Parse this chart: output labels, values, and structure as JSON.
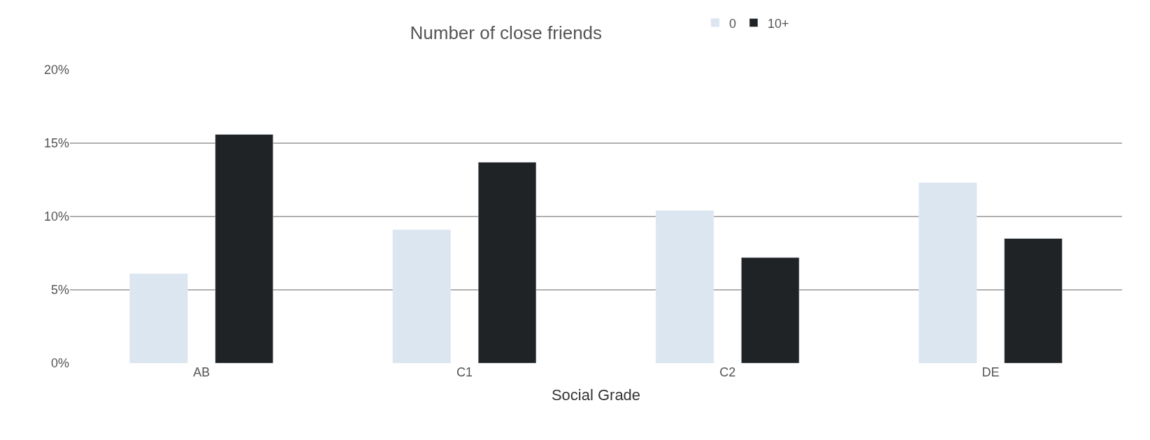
{
  "chart_data": {
    "type": "bar",
    "title": "Number of close friends",
    "xlabel": "Social Grade",
    "categories": [
      "AB",
      "C1",
      "C2",
      "DE"
    ],
    "series": [
      {
        "name": "0",
        "color": "#dce6f0",
        "values": [
          6.1,
          9.1,
          10.4,
          12.3
        ]
      },
      {
        "name": "10+",
        "color": "#1f2326",
        "values": [
          15.6,
          13.7,
          7.2,
          8.5
        ]
      }
    ],
    "ylim": [
      0,
      20
    ],
    "yticks": [
      {
        "value": 0,
        "label": "0%"
      },
      {
        "value": 5,
        "label": "5%"
      },
      {
        "value": 10,
        "label": "10%"
      },
      {
        "value": 15,
        "label": "15%"
      },
      {
        "value": 20,
        "label": "20%"
      }
    ],
    "grid": "y",
    "legend": "top"
  }
}
